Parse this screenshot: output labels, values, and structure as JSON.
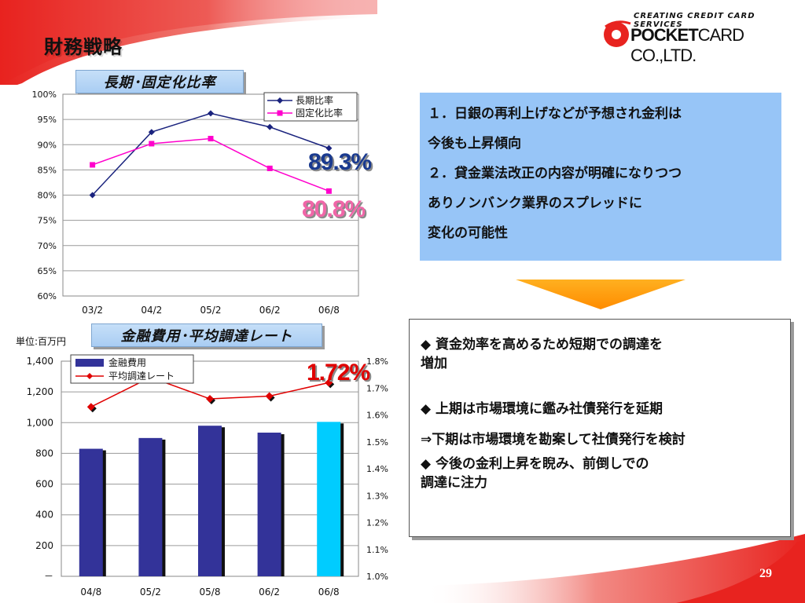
{
  "header": {
    "title": "財務戦略"
  },
  "logo": {
    "tagline": "CREATING CREDIT CARD SERVICES",
    "brand": "POCKET",
    "brand_suffix": "CARD CO.,LTD."
  },
  "colors": {
    "accent_red": "#e8231f",
    "navy_series": "#1a237e",
    "magenta_series": "#ff00cc",
    "bar_color": "#333399",
    "bar_highlight": "#00ccff",
    "info_box": "#97c5f7",
    "arrow": "#ff9900"
  },
  "sections": {
    "top_label": "長期･固定化比率",
    "bottom_label": "金融費用･平均調達レート",
    "unit_label": "単位:百万円"
  },
  "highlights": {
    "long_ratio": "89.3%",
    "fixed_ratio": "80.8%",
    "avg_rate": "1.72%"
  },
  "info_box": {
    "lines": [
      "１．日銀の再利上げなどが予想され金利は",
      "今後も上昇傾向",
      "２．貸金業法改正の内容が明確になりつつ",
      "ありノンバンク業界のスプレッドに",
      "変化の可能性"
    ]
  },
  "strategy_box": {
    "item1_line1": "◆ 資金効率を高めるため短期での調達を",
    "item1_line2": "増加",
    "item2_line1": "◆ 上期は市場環境に鑑み社債発行を延期",
    "item2_line2": "⇒下期は市場環境を勘案して社債発行を検討",
    "item3_line1": "◆ 今後の金利上昇を睨み、前倒しでの",
    "item3_line2": "調達に注力"
  },
  "page_number": "29",
  "chart_data": [
    {
      "type": "line",
      "x": [
        "03/2",
        "04/2",
        "05/2",
        "06/2",
        "06/8"
      ],
      "series": [
        {
          "name": "長期比率",
          "values": [
            80.0,
            92.5,
            96.2,
            93.5,
            89.3
          ],
          "color": "#1a237e",
          "marker": "diamond"
        },
        {
          "name": "固定化比率",
          "values": [
            86.0,
            90.2,
            91.2,
            85.3,
            80.8
          ],
          "color": "#ff00cc",
          "marker": "square"
        }
      ],
      "y_ticks": [
        "60%",
        "65%",
        "70%",
        "75%",
        "80%",
        "85%",
        "90%",
        "95%",
        "100%"
      ],
      "ylim": [
        60,
        100
      ],
      "legend": "top-right",
      "grid": true
    },
    {
      "type": "bar",
      "categories": [
        "04/8",
        "05/2",
        "05/8",
        "06/2",
        "06/8"
      ],
      "series": [
        {
          "name": "金融費用",
          "values": [
            830,
            900,
            980,
            935,
            1005
          ],
          "axis": "left",
          "color": "#333399",
          "highlight_last": "#00ccff"
        },
        {
          "name": "平均調達レート",
          "type": "line",
          "values": [
            1.63,
            1.74,
            1.66,
            1.67,
            1.72
          ],
          "axis": "right",
          "color": "#e00000",
          "marker": "diamond"
        }
      ],
      "left_ticks": [
        "－",
        "200",
        "400",
        "600",
        "800",
        "1,000",
        "1,200",
        "1,400"
      ],
      "right_ticks": [
        "1.0%",
        "1.1%",
        "1.2%",
        "1.3%",
        "1.4%",
        "1.5%",
        "1.6%",
        "1.7%",
        "1.8%"
      ],
      "ylim_left": [
        0,
        1400
      ],
      "ylim_right": [
        1.0,
        1.8
      ],
      "legend": "top-left",
      "grid": true
    }
  ]
}
